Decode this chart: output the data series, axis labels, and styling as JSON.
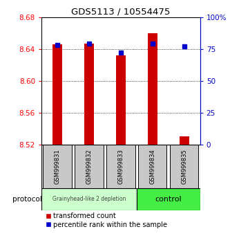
{
  "title": "GDS5113 / 10554475",
  "samples": [
    "GSM999831",
    "GSM999832",
    "GSM999833",
    "GSM999834",
    "GSM999835"
  ],
  "bar_bottoms": [
    8.52,
    8.52,
    8.52,
    8.52,
    8.52
  ],
  "bar_tops": [
    8.646,
    8.647,
    8.632,
    8.66,
    8.53
  ],
  "percentile_values": [
    78,
    79,
    72,
    79,
    77
  ],
  "bar_color": "#cc0000",
  "percentile_color": "#0000cc",
  "ylim_left": [
    8.52,
    8.68
  ],
  "ylim_right": [
    0,
    100
  ],
  "yticks_left": [
    8.52,
    8.56,
    8.6,
    8.64,
    8.68
  ],
  "yticks_right": [
    0,
    25,
    50,
    75,
    100
  ],
  "ytick_labels_right": [
    "0",
    "25",
    "50",
    "75",
    "100%"
  ],
  "group1_label": "Grainyhead-like 2 depletion",
  "group2_label": "control",
  "group1_indices": [
    0,
    1,
    2
  ],
  "group2_indices": [
    3,
    4
  ],
  "group1_color": "#ccffcc",
  "group2_color": "#44ee44",
  "protocol_label": "protocol",
  "legend1": "transformed count",
  "legend2": "percentile rank within the sample",
  "background_color": "#ffffff",
  "label_area_color": "#c8c8c8",
  "bar_width": 0.3
}
